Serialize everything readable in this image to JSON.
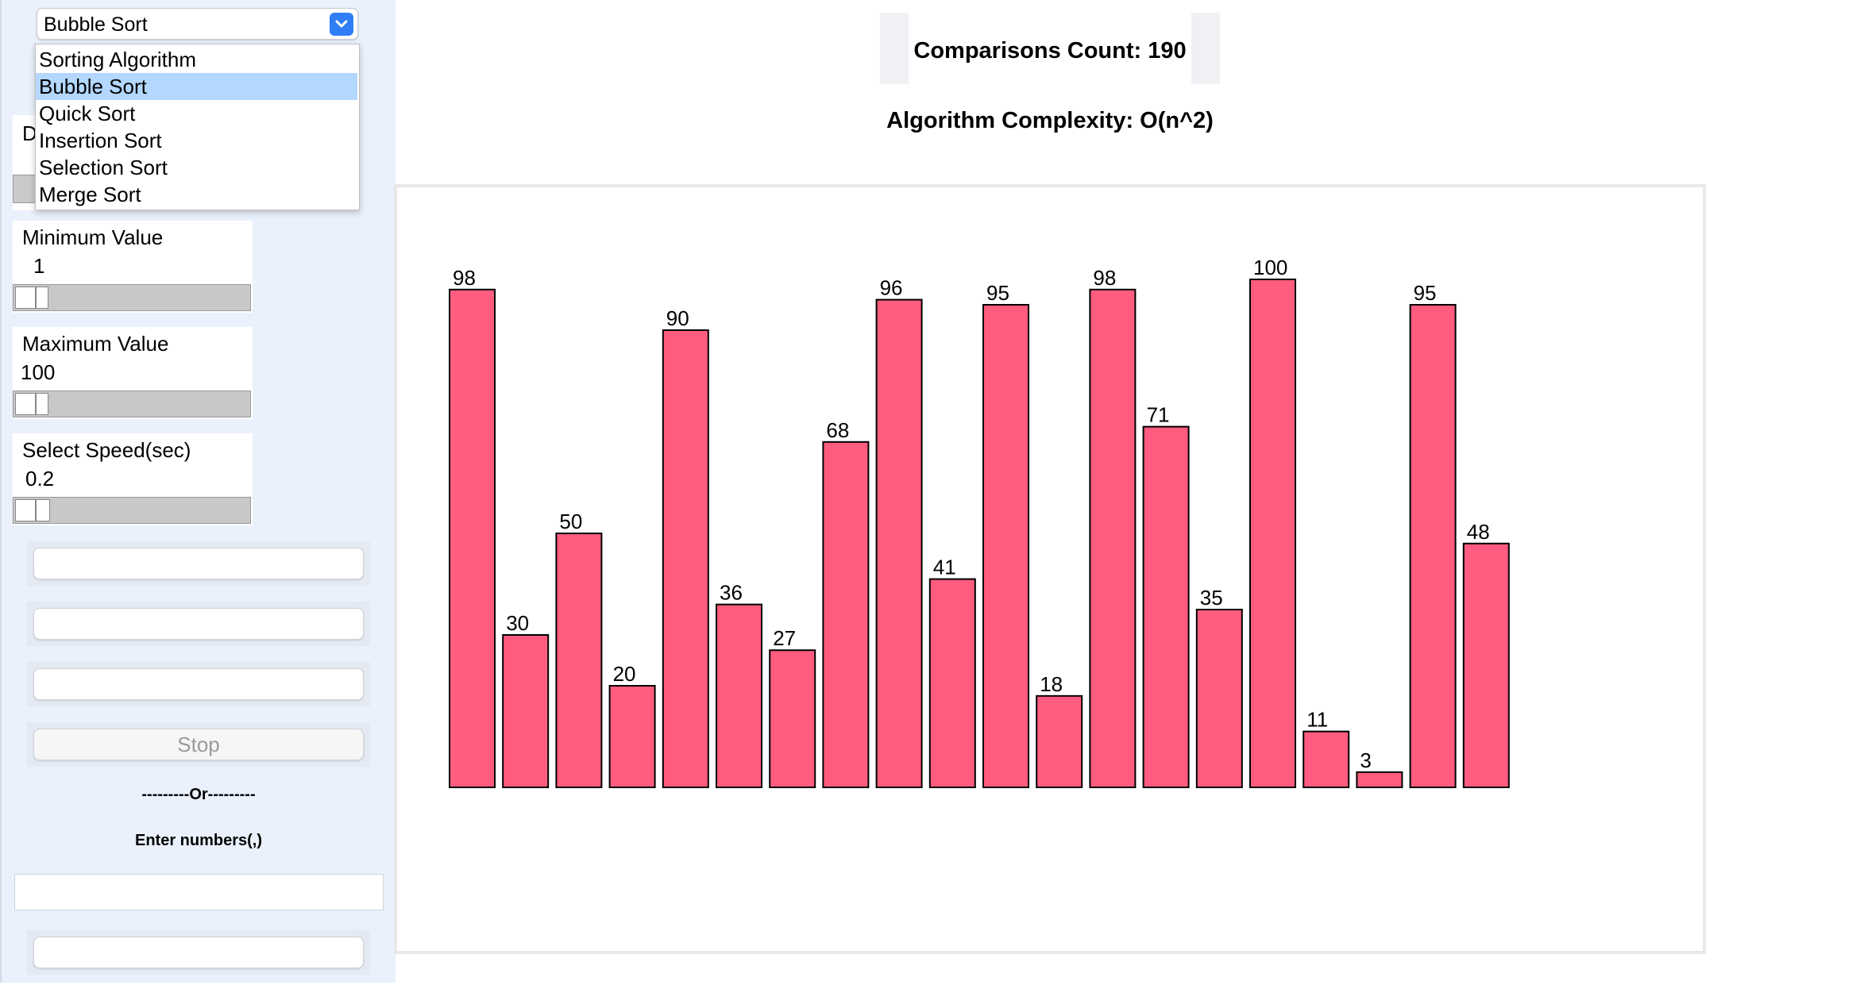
{
  "sidebar": {
    "algorithm_select": {
      "value": "Bubble Sort",
      "options": [
        "Sorting Algorithm",
        "Bubble Sort",
        "Quick Sort",
        "Insertion Sort",
        "Selection Sort",
        "Merge Sort"
      ]
    },
    "hidden_label_initial": "D",
    "min_value": {
      "label": "Minimum Value",
      "value": "1"
    },
    "max_value": {
      "label": "Maximum Value",
      "value": "100"
    },
    "speed": {
      "label": "Select Speed(sec)",
      "value": "0.2"
    },
    "stop_label": "Stop",
    "or_divider": "---------Or---------",
    "enter_numbers_label": "Enter numbers(,)"
  },
  "header": {
    "comparisons": "Comparisons Count: 190",
    "complexity": "Algorithm Complexity: O(n^2)"
  },
  "colors": {
    "bar": "#ff5c7f",
    "sidebar_bg": "#eaf1fd",
    "selected_option": "#b3d7ff"
  },
  "chart_data": {
    "type": "bar",
    "values": [
      98,
      30,
      50,
      20,
      90,
      36,
      27,
      68,
      96,
      41,
      95,
      18,
      98,
      71,
      35,
      100,
      11,
      3,
      95,
      48
    ],
    "ylim": [
      0,
      100
    ]
  }
}
